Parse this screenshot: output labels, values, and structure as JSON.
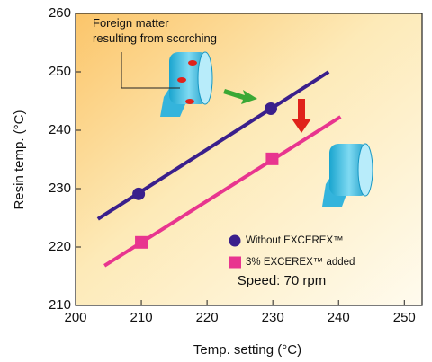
{
  "chart_data": {
    "type": "scatter",
    "xlabel": "Temp. setting (°C)",
    "ylabel": "Resin temp. (°C)",
    "xlim": [
      200,
      252.7
    ],
    "ylim": [
      210,
      260
    ],
    "xticks": [
      200,
      210,
      220,
      230,
      240,
      250
    ],
    "yticks": [
      210,
      220,
      230,
      240,
      250,
      260
    ],
    "annotations": [
      "Foreign matter\nresulting from scorching",
      "Speed: 70 rpm"
    ],
    "series": [
      {
        "name": "Without EXCEREX™",
        "color": "#3a1f8c",
        "marker": "circle",
        "x": [
          209.6,
          229.7
        ],
        "values": [
          229.1,
          243.7
        ],
        "fit": {
          "x": [
            203.4,
            238.5
          ],
          "values": [
            224.8,
            250
          ]
        }
      },
      {
        "name": "3% EXCEREX™ added",
        "color": "#e8358f",
        "marker": "square",
        "x": [
          210,
          229.9
        ],
        "values": [
          220.8,
          235.1
        ],
        "fit": {
          "x": [
            204.4,
            240.3
          ],
          "values": [
            216.8,
            242.3
          ]
        }
      }
    ]
  }
}
